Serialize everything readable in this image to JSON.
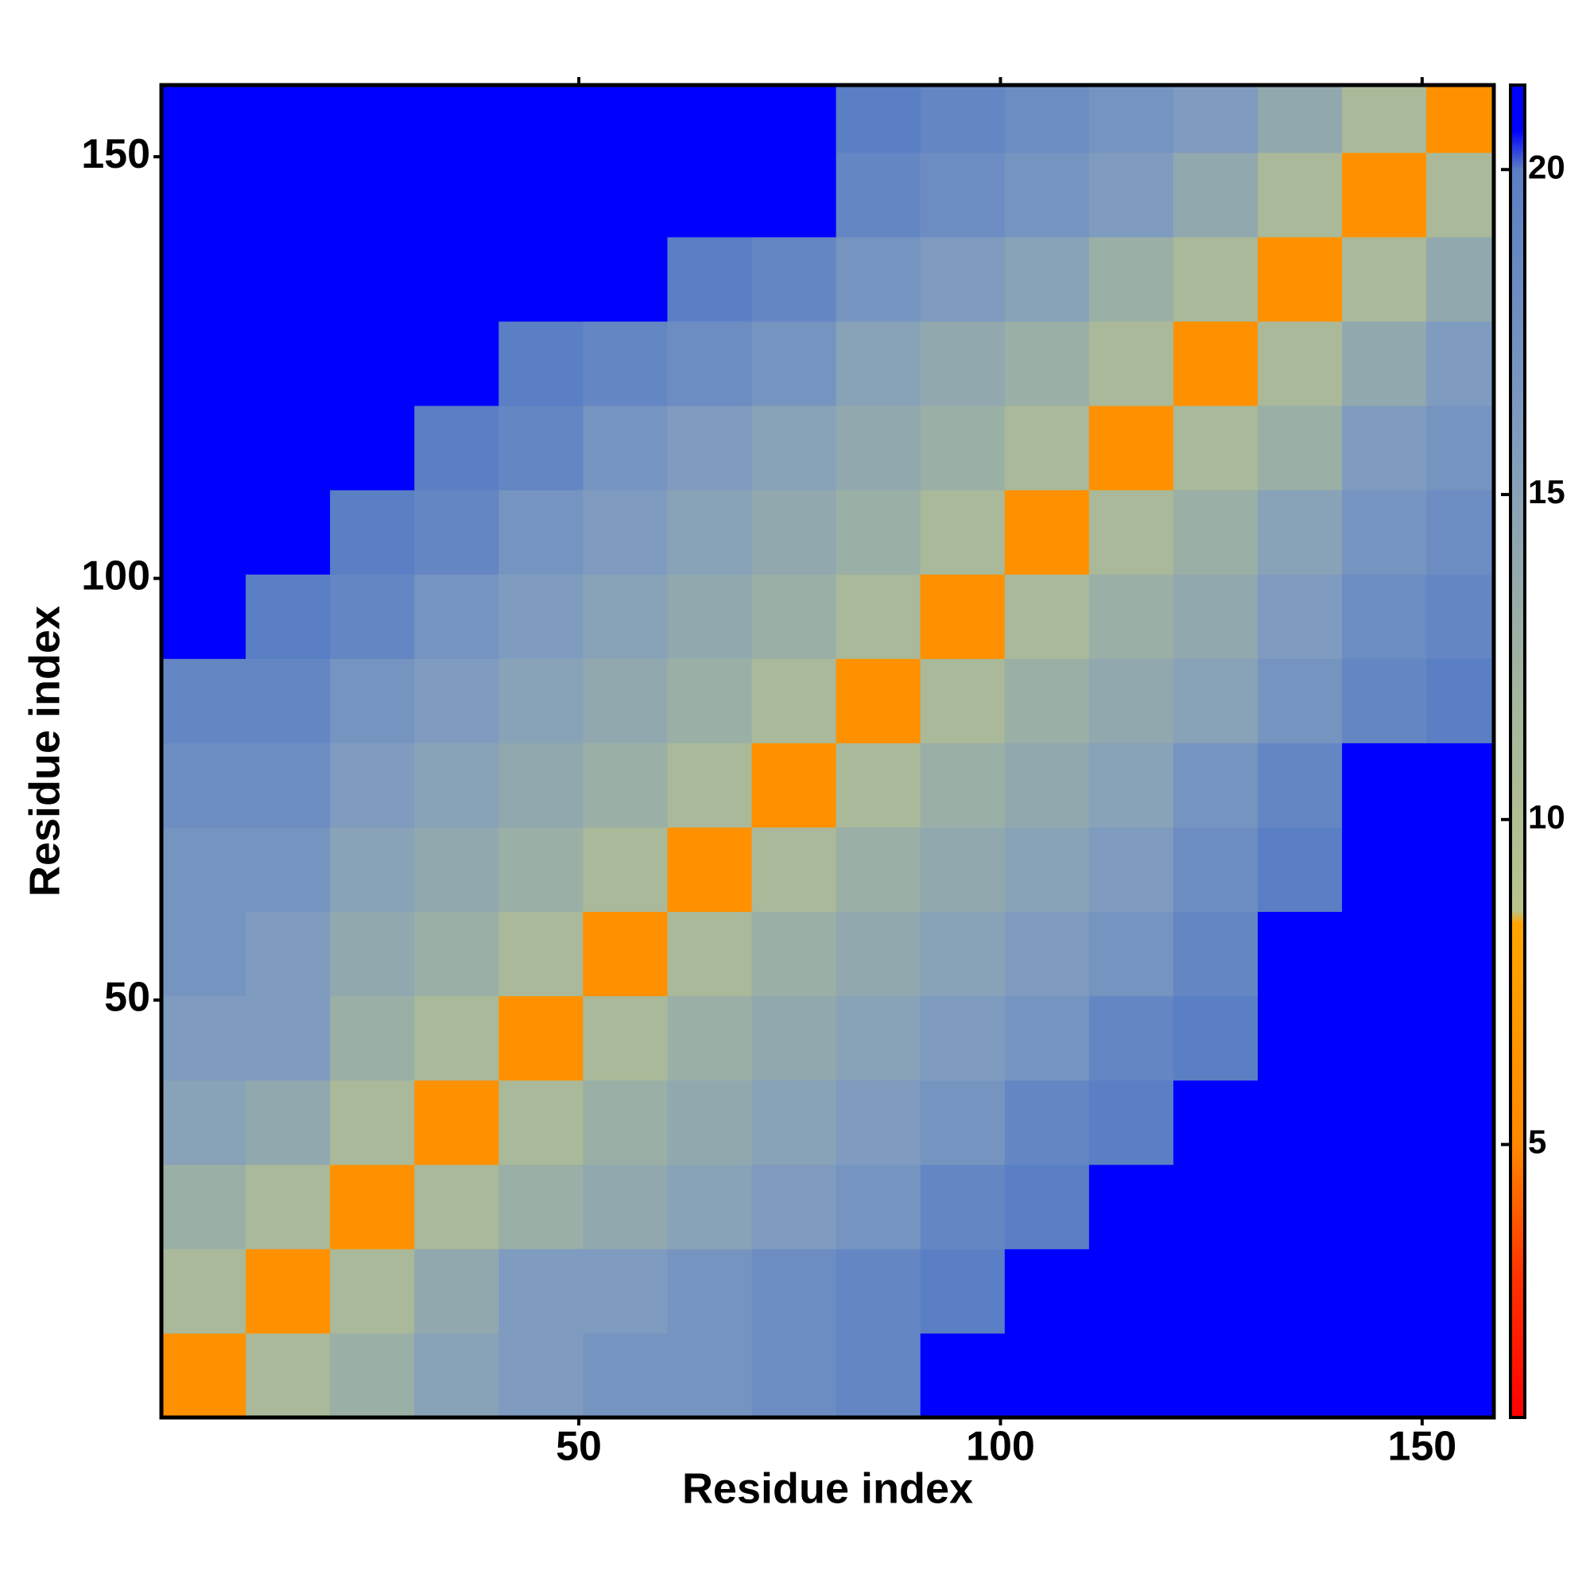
{
  "chart_data": {
    "type": "heatmap",
    "xlabel": "Residue index",
    "ylabel": "Residue index",
    "xbins": [
      0.5,
      10.5,
      20.5,
      30.5,
      40.5,
      50.5,
      60.5,
      70.5,
      80.5,
      90.5,
      100.5,
      110.5,
      120.5,
      130.5,
      140.5,
      150.5,
      158.5
    ],
    "ybins": [
      0.5,
      10.5,
      20.5,
      30.5,
      40.5,
      50.5,
      60.5,
      70.5,
      80.5,
      90.5,
      100.5,
      110.5,
      120.5,
      130.5,
      140.5,
      150.5,
      158.5
    ],
    "xlim": [
      0.5,
      158.5
    ],
    "xticks": [
      50,
      100,
      150
    ],
    "ylim": [
      0.5,
      158.5
    ],
    "yticks": [
      50,
      100,
      150
    ],
    "zlim": [
      0.8,
      21.3
    ],
    "zticks": [
      5,
      10,
      15,
      20
    ],
    "colorscale": [
      [
        0.8,
        "#ff0000"
      ],
      [
        3,
        "#ff3300"
      ],
      [
        5,
        "#ff8800"
      ],
      [
        8.4,
        "#ffa500"
      ],
      [
        8.6,
        "#b9c48c"
      ],
      [
        12,
        "#a3b59e"
      ],
      [
        16,
        "#7f9bbf"
      ],
      [
        20,
        "#5b7fc4"
      ],
      [
        20.6,
        "#0000ff"
      ],
      [
        21.3,
        "#0000ff"
      ]
    ],
    "z": [
      [
        6,
        11,
        13,
        15,
        16,
        17,
        17,
        18,
        19,
        21,
        21,
        21,
        21,
        21,
        21,
        21
      ],
      [
        11,
        6,
        11,
        14,
        16,
        16,
        17,
        18,
        19,
        20,
        21,
        21,
        21,
        21,
        21,
        21
      ],
      [
        13,
        11,
        6,
        11,
        13,
        14,
        15,
        16,
        17,
        19,
        20,
        21,
        21,
        21,
        21,
        21
      ],
      [
        15,
        14,
        11,
        6,
        11,
        13,
        14,
        15,
        16,
        17,
        19,
        20,
        21,
        21,
        21,
        21
      ],
      [
        16,
        16,
        13,
        11,
        6,
        11,
        13,
        14,
        15,
        16,
        17,
        19,
        20,
        21,
        21,
        21
      ],
      [
        17,
        16,
        14,
        13,
        11,
        6,
        11,
        13,
        14,
        15,
        16,
        17,
        19,
        21,
        21,
        21
      ],
      [
        17,
        17,
        15,
        14,
        13,
        11,
        6,
        11,
        13,
        14,
        15,
        16,
        18,
        20,
        21,
        21
      ],
      [
        18,
        18,
        16,
        15,
        14,
        13,
        11,
        6,
        11,
        13,
        14,
        15,
        17,
        19,
        21,
        21
      ],
      [
        19,
        19,
        17,
        16,
        15,
        14,
        13,
        11,
        6,
        11,
        13,
        14,
        15,
        17,
        19,
        20
      ],
      [
        21,
        20,
        19,
        17,
        16,
        15,
        14,
        13,
        11,
        6,
        11,
        13,
        14,
        16,
        18,
        19
      ],
      [
        21,
        21,
        20,
        19,
        17,
        16,
        15,
        14,
        13,
        11,
        6,
        11,
        13,
        15,
        17,
        18
      ],
      [
        21,
        21,
        21,
        20,
        19,
        17,
        16,
        15,
        14,
        13,
        11,
        6,
        11,
        13,
        16,
        17
      ],
      [
        21,
        21,
        21,
        21,
        20,
        19,
        18,
        17,
        15,
        14,
        13,
        11,
        6,
        11,
        14,
        16
      ],
      [
        21,
        21,
        21,
        21,
        21,
        21,
        20,
        19,
        17,
        16,
        15,
        13,
        11,
        6,
        11,
        14
      ],
      [
        21,
        21,
        21,
        21,
        21,
        21,
        21,
        21,
        19,
        18,
        17,
        16,
        14,
        11,
        6,
        11
      ],
      [
        21,
        21,
        21,
        21,
        21,
        21,
        21,
        21,
        20,
        19,
        18,
        17,
        16,
        14,
        11,
        6
      ]
    ]
  }
}
